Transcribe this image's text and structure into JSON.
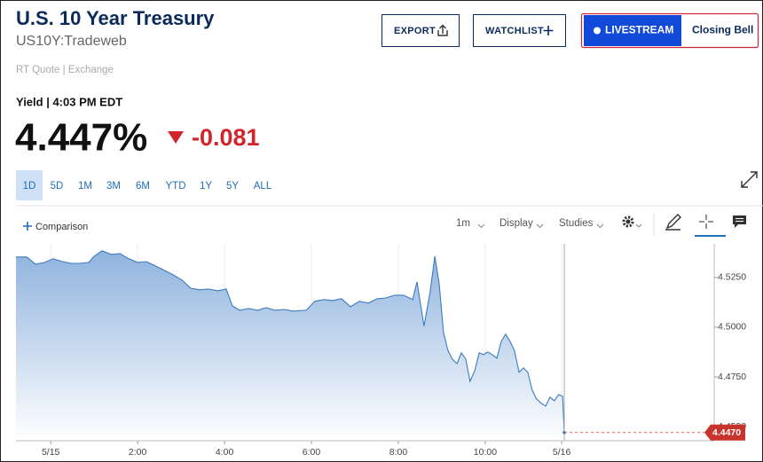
{
  "header": {
    "title": "U.S. 10 Year Treasury",
    "symbol": "US10Y:Tradeweb",
    "quote_source": "RT Quote | Exchange",
    "yield_label": "Yield | 4:03 PM EDT",
    "price": "4.447%",
    "change": "-0.081"
  },
  "buttons": {
    "export": "EXPORT",
    "watchlist": "WATCHLIST",
    "livestream": "LIVESTREAM",
    "closing_bell": "Closing Bell"
  },
  "range_tabs": [
    "1D",
    "5D",
    "1M",
    "3M",
    "6M",
    "YTD",
    "1Y",
    "5Y",
    "ALL"
  ],
  "selected_tab": 0,
  "toolbar": {
    "comparison": "Comparison",
    "interval": "1m",
    "display": "Display",
    "studies": "Studies"
  },
  "chart_data": {
    "type": "area",
    "color": "#3a7bbf",
    "grid": "x",
    "x": [
      -0.8,
      -0.55,
      -0.35,
      -0.14,
      0.06,
      0.27,
      0.47,
      0.67,
      0.88,
      0.98,
      1.18,
      1.39,
      1.59,
      1.8,
      2.0,
      2.2,
      2.41,
      2.61,
      2.82,
      3.02,
      3.22,
      3.43,
      3.63,
      3.84,
      4.04,
      4.18,
      4.35,
      4.55,
      4.76,
      4.96,
      5.16,
      5.37,
      5.57,
      5.88,
      6.08,
      6.29,
      6.49,
      6.69,
      6.9,
      7.1,
      7.31,
      7.51,
      7.71,
      7.92,
      8.12,
      8.33,
      8.43,
      8.59,
      8.73,
      8.84,
      8.94,
      9.04,
      9.14,
      9.24,
      9.35,
      9.45,
      9.55,
      9.65,
      9.76,
      9.86,
      9.96,
      10.06,
      10.16,
      10.27,
      10.37,
      10.47,
      10.57,
      10.67,
      10.78,
      10.88,
      10.98,
      11.08,
      11.18,
      11.29,
      11.39,
      11.49,
      11.59,
      11.69,
      11.78,
      11.82
    ],
    "values": [
      4.5353,
      4.5353,
      4.5317,
      4.5326,
      4.5344,
      4.533,
      4.5321,
      4.5321,
      4.5326,
      4.5353,
      4.5384,
      4.5366,
      4.537,
      4.5344,
      4.5326,
      4.533,
      4.5308,
      4.5286,
      4.5263,
      4.5237,
      4.5196,
      4.5188,
      4.5192,
      4.5183,
      4.5192,
      4.5107,
      4.5085,
      4.5094,
      4.5085,
      4.5098,
      4.5085,
      4.5089,
      4.5081,
      4.5085,
      4.513,
      4.5139,
      4.5134,
      4.5143,
      4.5103,
      4.513,
      4.5121,
      4.5143,
      4.5147,
      4.5161,
      4.5161,
      4.5139,
      4.5228,
      4.5005,
      4.5174,
      4.5357,
      4.5219,
      4.4973,
      4.4884,
      4.484,
      4.4817,
      4.4871,
      4.484,
      4.4728,
      4.4782,
      4.4871,
      4.4862,
      4.4875,
      4.4862,
      4.4844,
      4.4929,
      4.4965,
      4.4929,
      4.4884,
      4.4773,
      4.4795,
      4.4773,
      4.4684,
      4.4639,
      4.4617,
      4.4603,
      4.4648,
      4.463,
      4.4661,
      4.4652,
      4.447
    ],
    "xlim": [
      -0.8,
      15.27
    ],
    "ylim": [
      4.4429,
      4.5419
    ],
    "xticks": [
      {
        "value": 0,
        "label": "5/15"
      },
      {
        "value": 2,
        "label": "2:00"
      },
      {
        "value": 4,
        "label": "4:00"
      },
      {
        "value": 6,
        "label": "6:00"
      },
      {
        "value": 8,
        "label": "8:00"
      },
      {
        "value": 10,
        "label": "10:00"
      },
      {
        "value": 11.76,
        "label": "5/16"
      }
    ],
    "yticks": [
      {
        "value": 4.45,
        "label": "4.4500"
      },
      {
        "value": 4.475,
        "label": "4.4750"
      },
      {
        "value": 4.5,
        "label": "4.5000"
      },
      {
        "value": 4.525,
        "label": "4.5250"
      }
    ],
    "last_price": 4.447,
    "last_price_label": "4.4470"
  }
}
